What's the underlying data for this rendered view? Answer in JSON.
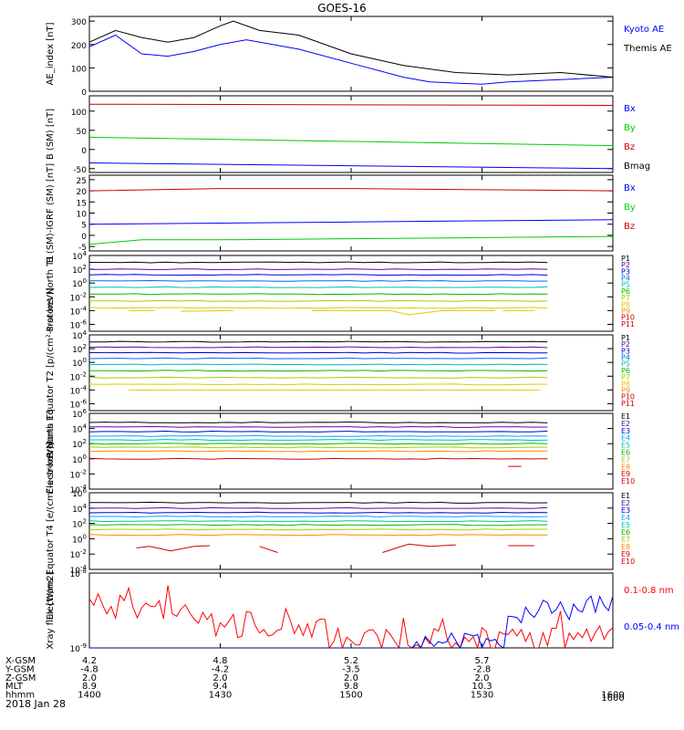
{
  "title": "GOES-16",
  "date": "2018 Jan 28",
  "x_axis": {
    "ticks": [
      "1400",
      "1430",
      "1500",
      "1530",
      "1600"
    ],
    "tick_hours": [
      14.0,
      14.5,
      15.0,
      15.5,
      16.0
    ],
    "range_hours": [
      14.0,
      16.0
    ],
    "orbit_rows": [
      {
        "label": "X-GSM",
        "values": [
          "4.2",
          "4.8",
          "5.2",
          "5.7"
        ]
      },
      {
        "label": "Y-GSM",
        "values": [
          "-4.8",
          "-4.2",
          "-3.5",
          "-2.8"
        ]
      },
      {
        "label": "Z-GSM",
        "values": [
          "2.0",
          "2.0",
          "2.0",
          "2.0"
        ]
      },
      {
        "label": "MLT",
        "values": [
          "8.9",
          "9.4",
          "9.8",
          "10.3"
        ]
      },
      {
        "label": "hhmm",
        "values": [
          "1400",
          "1430",
          "1500",
          "1530",
          "1600"
        ]
      }
    ]
  },
  "chart_data": [
    {
      "type": "line",
      "ylabel": "AE_index [nT]",
      "ylim": [
        0,
        320
      ],
      "yticks": [
        "0",
        "100",
        "200",
        "300"
      ],
      "ytick_values": [
        0,
        100,
        200,
        300
      ],
      "series": [
        {
          "name": "Kyoto AE",
          "color": "#0000ff",
          "x": [
            14.0,
            14.1,
            14.2,
            14.3,
            14.4,
            14.5,
            14.6,
            14.8,
            15.0,
            15.2,
            15.3,
            15.5,
            15.6,
            15.8,
            16.0
          ],
          "values": [
            190,
            240,
            160,
            150,
            170,
            200,
            220,
            180,
            120,
            60,
            40,
            30,
            40,
            50,
            60
          ]
        },
        {
          "name": "Themis AE",
          "color": "#000000",
          "x": [
            14.0,
            14.1,
            14.2,
            14.3,
            14.4,
            14.5,
            14.55,
            14.65,
            14.8,
            15.0,
            15.2,
            15.4,
            15.6,
            15.8,
            16.0
          ],
          "values": [
            210,
            260,
            230,
            210,
            230,
            280,
            300,
            260,
            240,
            160,
            110,
            80,
            70,
            80,
            60
          ]
        }
      ]
    },
    {
      "type": "line",
      "ylabel": "B (SM) [nT]",
      "ylim": [
        -60,
        140
      ],
      "yticks": [
        "-50",
        "0",
        "50",
        "100"
      ],
      "ytick_values": [
        -50,
        0,
        50,
        100
      ],
      "series": [
        {
          "name": "Bx",
          "color": "#0000ff",
          "x": [
            14.0,
            16.0
          ],
          "values": [
            -35,
            -50
          ]
        },
        {
          "name": "By",
          "color": "#00cc00",
          "x": [
            14.0,
            16.0
          ],
          "values": [
            32,
            10
          ]
        },
        {
          "name": "Bz",
          "color": "#cc0000",
          "x": [
            14.0,
            16.0
          ],
          "values": [
            118,
            115
          ]
        },
        {
          "name": "Bmag",
          "color": "#000000",
          "x": [],
          "values": []
        }
      ]
    },
    {
      "type": "line",
      "ylabel": "B (SM)-IGRF (SM) [nT]",
      "ylim": [
        -7,
        27
      ],
      "yticks": [
        "-5",
        "0",
        "5",
        "10",
        "15",
        "20",
        "25"
      ],
      "ytick_values": [
        -5,
        0,
        5,
        10,
        15,
        20,
        25
      ],
      "series": [
        {
          "name": "Bx",
          "color": "#0000ff",
          "x": [
            14.0,
            14.5,
            15.0,
            15.5,
            16.0
          ],
          "values": [
            5,
            5.5,
            6,
            6.5,
            7
          ]
        },
        {
          "name": "By",
          "color": "#00cc00",
          "x": [
            14.0,
            14.2,
            14.5,
            15.0,
            15.5,
            16.0
          ],
          "values": [
            -4,
            -2,
            -2,
            -1.5,
            -1,
            -0.5
          ]
        },
        {
          "name": "Bz",
          "color": "#cc0000",
          "x": [
            14.0,
            14.5,
            15.0,
            15.5,
            16.0
          ],
          "values": [
            20,
            21,
            21,
            20.5,
            20
          ]
        }
      ]
    },
    {
      "type": "line",
      "log_y": true,
      "ylabel": "Protons North T1",
      "ylim_log10": [
        -7,
        4
      ],
      "yticks": [
        "10^4",
        "10^2",
        "10^0",
        "10^-2",
        "10^-4",
        "10^-6"
      ],
      "ytick_log10": [
        4,
        2,
        0,
        -2,
        -4,
        -6
      ],
      "x_end": 15.75,
      "series": [
        {
          "name": "P1",
          "color": "#000000",
          "log10": 3.0
        },
        {
          "name": "P2",
          "color": "#6600aa",
          "log10": 2.0
        },
        {
          "name": "P3",
          "color": "#0000cc",
          "log10": 1.2
        },
        {
          "name": "P4",
          "color": "#0066ff",
          "log10": 0.3
        },
        {
          "name": "P5",
          "color": "#00bbbb",
          "log10": -0.6
        },
        {
          "name": "P6",
          "color": "#00bb00",
          "log10": -1.6
        },
        {
          "name": "P7",
          "color": "#aacc00",
          "log10": -2.6
        },
        {
          "name": "P8",
          "color": "#ddcc00",
          "log10": -3.6
        },
        {
          "name": "P9",
          "color": "#ff8800"
        },
        {
          "name": "P10",
          "color": "#cc0000"
        },
        {
          "name": "P11",
          "color": "#cc0000"
        }
      ]
    },
    {
      "type": "line",
      "log_y": true,
      "ylabel": "Protons Equator T2 [p/(cm²-s-sr-keV)]",
      "ylim_log10": [
        -7,
        4
      ],
      "yticks": [
        "10^4",
        "10^2",
        "10^0",
        "10^-2",
        "10^-4",
        "10^-6"
      ],
      "ytick_log10": [
        4,
        2,
        0,
        -2,
        -4,
        -6
      ],
      "x_end": 15.75,
      "series": [
        {
          "name": "P1",
          "color": "#000000",
          "log10": 3.0
        },
        {
          "name": "P2",
          "color": "#6600aa",
          "log10": 2.2
        },
        {
          "name": "P3",
          "color": "#0000cc",
          "log10": 1.4
        },
        {
          "name": "P4",
          "color": "#0066ff",
          "log10": 0.6
        },
        {
          "name": "P5",
          "color": "#00bbbb",
          "log10": -0.3
        },
        {
          "name": "P6",
          "color": "#00bb00",
          "log10": -1.2
        },
        {
          "name": "P7",
          "color": "#aacc00",
          "log10": -2.2
        },
        {
          "name": "P8",
          "color": "#ddcc00",
          "log10": -3.2
        },
        {
          "name": "P9",
          "color": "#ff8800"
        },
        {
          "name": "P10",
          "color": "#cc0000"
        },
        {
          "name": "P11",
          "color": "#cc0000"
        }
      ]
    },
    {
      "type": "line",
      "log_y": true,
      "ylabel": "Electrons North T3",
      "ylim_log10": [
        -4,
        6
      ],
      "yticks": [
        "10^6",
        "10^4",
        "10^2",
        "10^0",
        "10^-2",
        "10^-4"
      ],
      "ytick_log10": [
        6,
        4,
        2,
        0,
        -2,
        -4
      ],
      "x_end": 15.75,
      "series": [
        {
          "name": "E1",
          "color": "#000000",
          "log10": 4.8
        },
        {
          "name": "E2",
          "color": "#6600aa",
          "log10": 4.2
        },
        {
          "name": "E3",
          "color": "#0000cc",
          "log10": 3.6
        },
        {
          "name": "E4",
          "color": "#00aaff",
          "log10": 3.0
        },
        {
          "name": "E5",
          "color": "#00bbbb",
          "log10": 2.5
        },
        {
          "name": "E6",
          "color": "#00bb00",
          "log10": 2.0
        },
        {
          "name": "E7",
          "color": "#aacc00",
          "log10": 1.5
        },
        {
          "name": "E8",
          "color": "#ff8800",
          "log10": 1.0
        },
        {
          "name": "E9",
          "color": "#cc0000",
          "log10": 0
        },
        {
          "name": "E10",
          "color": "#cc0000"
        }
      ]
    },
    {
      "type": "line",
      "log_y": true,
      "ylabel": "Electrons Equator T4 [e/(cm²-s-sr-keV)]",
      "ylim_log10": [
        -4,
        6
      ],
      "yticks": [
        "10^6",
        "10^4",
        "10^2",
        "10^0",
        "10^-2",
        "10^-4"
      ],
      "ytick_log10": [
        6,
        4,
        2,
        0,
        -2,
        -4
      ],
      "x_end": 15.75,
      "series": [
        {
          "name": "E1",
          "color": "#000000",
          "log10": 4.7
        },
        {
          "name": "E2",
          "color": "#6600aa",
          "log10": 4.0
        },
        {
          "name": "E3",
          "color": "#0000cc",
          "log10": 3.4
        },
        {
          "name": "E4",
          "color": "#00aaff",
          "log10": 2.9
        },
        {
          "name": "E5",
          "color": "#00bbbb",
          "log10": 2.3
        },
        {
          "name": "E6",
          "color": "#00bb00",
          "log10": 1.8
        },
        {
          "name": "E7",
          "color": "#aacc00",
          "log10": 1.2
        },
        {
          "name": "E8",
          "color": "#ff8800",
          "log10": 0.5
        },
        {
          "name": "E9",
          "color": "#cc0000"
        },
        {
          "name": "E10",
          "color": "#cc0000"
        }
      ]
    },
    {
      "type": "line",
      "log_y": true,
      "ylabel": "Xray flux [W/m2]",
      "ylim_log10": [
        -9,
        -8
      ],
      "yticks": [
        "10^-8",
        "10^-9"
      ],
      "ytick_log10": [
        -8,
        -9
      ],
      "series": [
        {
          "name": "0.1-0.8 nm",
          "color": "#ff0000"
        },
        {
          "name": "0.05-0.4 nm",
          "color": "#0000ff"
        }
      ]
    }
  ]
}
